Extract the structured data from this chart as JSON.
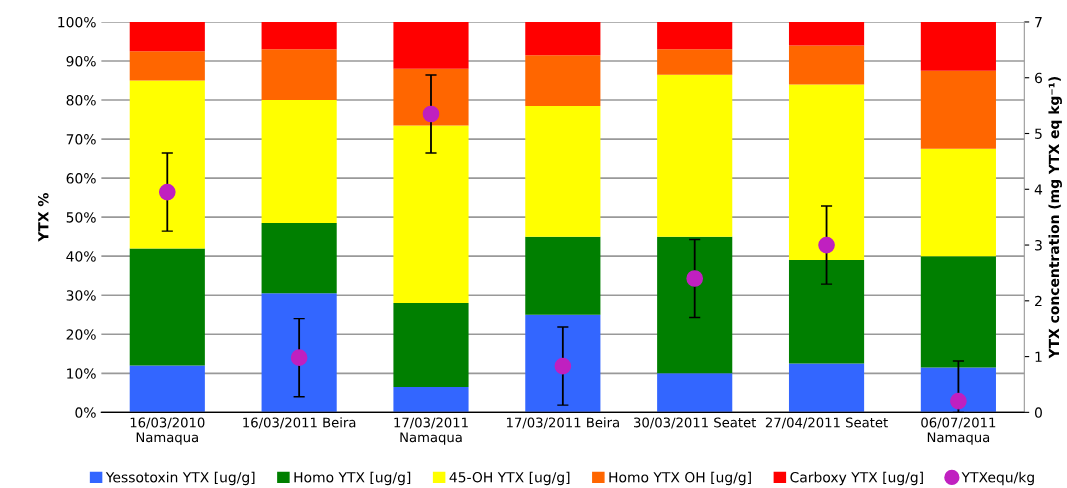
{
  "chart_data": {
    "type": "bar",
    "stacked": true,
    "ylabel": "YTX %",
    "y2label": "YTX concentration (mg YTX eq kg⁻¹)",
    "categories": [
      "16/03/2010\nNamaqua",
      "16/03/2011 Beira",
      "17/03/2011\nNamaqua",
      "17/03/2011 Beira",
      "30/03/2011 Seatet",
      "27/04/2011 Seatet",
      "06/07/2011\nNamaqua"
    ],
    "series": [
      {
        "name": "Yessotoxin YTX [ug/g]",
        "color": "#3366ff",
        "values": [
          12,
          30.5,
          6.5,
          25,
          10,
          12.5,
          11.5
        ]
      },
      {
        "name": "Homo YTX [ug/g]",
        "color": "#007f00",
        "values": [
          30,
          18,
          21.5,
          20,
          35,
          26.5,
          28.5
        ]
      },
      {
        "name": "45-OH YTX [ug/g]",
        "color": "#ffff00",
        "values": [
          43,
          31.5,
          45.5,
          33.5,
          41.5,
          45,
          27.5
        ]
      },
      {
        "name": "Homo YTX OH [ug/g]",
        "color": "#ff6600",
        "values": [
          7.5,
          13,
          14.5,
          13,
          6.5,
          10,
          20
        ]
      },
      {
        "name": "Carboxy YTX [ug/g]",
        "color": "#ff0000",
        "values": [
          7.5,
          7,
          12,
          8.5,
          7,
          6,
          12.5
        ]
      },
      {
        "name": "YTXequ/kg",
        "type": "scatter",
        "axis": "y2",
        "color": "#c020c0",
        "marker": "circle",
        "values": [
          3.95,
          0.98,
          5.35,
          0.83,
          2.4,
          3.0,
          0.2
        ],
        "errors": [
          0.7,
          0.7,
          0.7,
          0.7,
          0.7,
          0.7,
          [
            0,
            0.92
          ]
        ]
      }
    ],
    "ylim": [
      0,
      100
    ],
    "yticks": [
      {
        "value": 0,
        "label": "0%"
      },
      {
        "value": 10,
        "label": "10%"
      },
      {
        "value": 20,
        "label": "20%"
      },
      {
        "value": 30,
        "label": "30%"
      },
      {
        "value": 40,
        "label": "40%"
      },
      {
        "value": 50,
        "label": "50%"
      },
      {
        "value": 60,
        "label": "60%"
      },
      {
        "value": 70,
        "label": "70%"
      },
      {
        "value": 80,
        "label": "80%"
      },
      {
        "value": 90,
        "label": "90%"
      },
      {
        "value": 100,
        "label": "100%"
      }
    ],
    "y2lim": [
      0,
      7
    ],
    "y2ticks": [
      0,
      1,
      2,
      3,
      4,
      5,
      6,
      7
    ],
    "grid": "y",
    "legend": "bottom"
  }
}
